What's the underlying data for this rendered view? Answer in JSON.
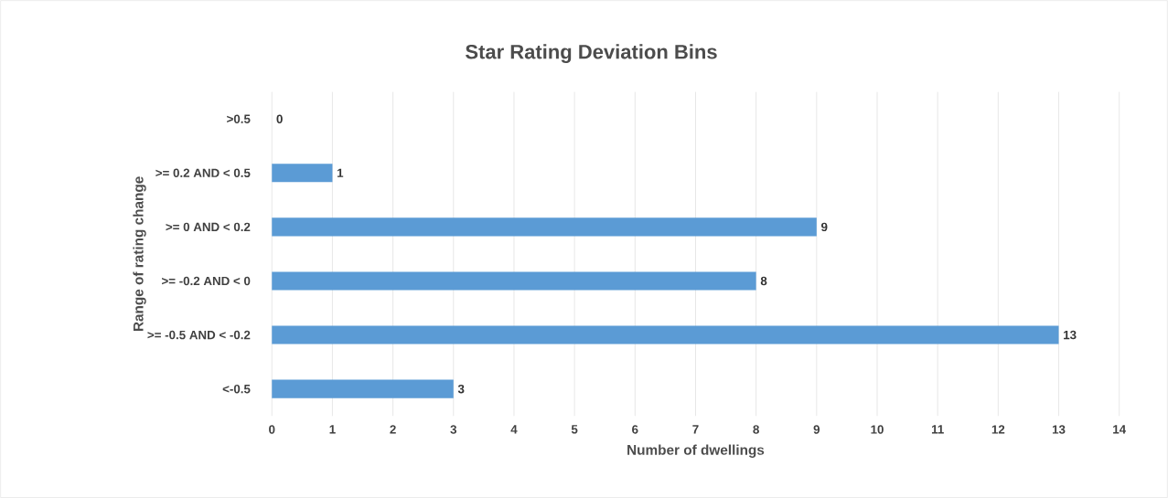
{
  "chart_data": {
    "type": "bar",
    "orientation": "horizontal",
    "title": "Star Rating Deviation Bins",
    "xlabel": "Number of dwellings",
    "ylabel": "Range of rating change",
    "categories": [
      ">0.5",
      ">= 0.2 AND < 0.5",
      ">= 0 AND < 0.2",
      ">= -0.2 AND < 0",
      ">= -0.5 AND < -0.2",
      "<-0.5"
    ],
    "values": [
      0,
      1,
      9,
      8,
      13,
      3
    ],
    "color": "#5b9bd5",
    "xlim": [
      0,
      14
    ],
    "xticks": [
      0,
      1,
      2,
      3,
      4,
      5,
      6,
      7,
      8,
      9,
      10,
      11,
      12,
      13,
      14
    ],
    "grid": "x",
    "data_labels": true
  }
}
